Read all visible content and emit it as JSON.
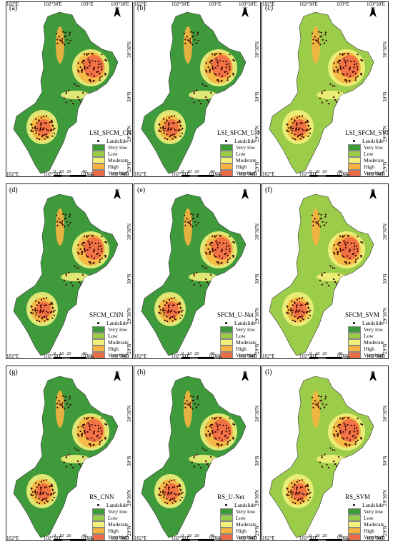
{
  "panels": [
    {
      "label": "(a)",
      "model": "LSI_SFCM_CNN",
      "palette": "dark"
    },
    {
      "label": "(b)",
      "model": "LSI_SFCM_U-Net",
      "palette": "dark"
    },
    {
      "label": "(c)",
      "model": "LSI_SFCM_SVM",
      "palette": "light"
    },
    {
      "label": "(d)",
      "model": "SFCM_CNN",
      "palette": "dark"
    },
    {
      "label": "(e)",
      "model": "SFCM_U-Net",
      "palette": "dark"
    },
    {
      "label": "(f)",
      "model": "SFCM_SVM",
      "palette": "light"
    },
    {
      "label": "(g)",
      "model": "RS_CNN",
      "palette": "dark"
    },
    {
      "label": "(h)",
      "model": "RS_U-Net",
      "palette": "dark"
    },
    {
      "label": "(i)",
      "model": "RS_SVM",
      "palette": "light"
    }
  ],
  "legend": {
    "items": [
      "Landslide",
      "Very low",
      "Low",
      "Moderate",
      "High",
      "Very high"
    ],
    "colors": {
      "Very low": "#3f9a3c",
      "Low": "#9bcc4a",
      "Moderate": "#f2f07a",
      "High": "#f7b440",
      "Very high": "#ef6b46"
    }
  },
  "north_label": "N",
  "scale": {
    "ticks": [
      "0",
      "10",
      "20",
      "40"
    ],
    "unit": "km"
  },
  "lon_labels": [
    "102°E",
    "102°30'E",
    "103°E",
    "103°30'E"
  ],
  "lat_labels": [
    "30°30'N",
    "30°N",
    "29°30'N",
    "29°N"
  ]
}
